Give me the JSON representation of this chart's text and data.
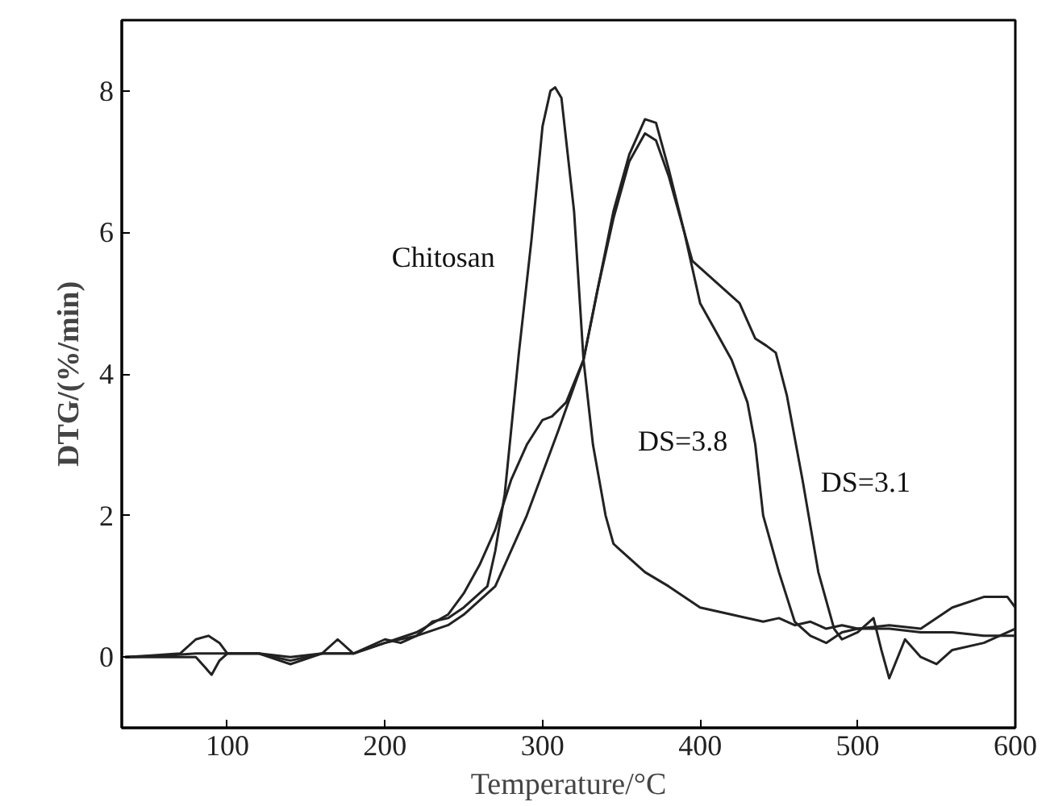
{
  "chart_data": {
    "type": "line",
    "xlabel": "Temperature/°C",
    "ylabel": "DTG/(%/min)",
    "xlim": [
      33,
      600
    ],
    "ylim": [
      -1,
      9
    ],
    "xticks": [
      100,
      200,
      300,
      400,
      500,
      600
    ],
    "yticks": [
      0,
      2,
      4,
      6,
      8
    ],
    "grid": false,
    "line_style": "solid",
    "series": [
      {
        "name": "Chitosan",
        "color": "#222222",
        "x": [
          35,
          50,
          70,
          80,
          88,
          95,
          100,
          120,
          140,
          160,
          180,
          200,
          210,
          220,
          230,
          240,
          250,
          260,
          265,
          270,
          276,
          285,
          293,
          300,
          305,
          308,
          312,
          320,
          326,
          332,
          340,
          345,
          355,
          365,
          380,
          400,
          420,
          440,
          450,
          460,
          470,
          480,
          490,
          500,
          520,
          540,
          560,
          580,
          595,
          600
        ],
        "values": [
          0,
          0.02,
          0.05,
          0.25,
          0.3,
          0.2,
          0.05,
          0.05,
          -0.05,
          0.05,
          0.05,
          0.25,
          0.2,
          0.3,
          0.5,
          0.55,
          0.7,
          0.9,
          1.0,
          1.5,
          2.3,
          4.3,
          5.9,
          7.5,
          8.0,
          8.05,
          7.9,
          6.3,
          4.2,
          3.0,
          2.0,
          1.6,
          1.4,
          1.2,
          1.0,
          0.7,
          0.6,
          0.5,
          0.55,
          0.45,
          0.5,
          0.4,
          0.45,
          0.4,
          0.45,
          0.4,
          0.7,
          0.85,
          0.85,
          0.7
        ]
      },
      {
        "name": "DS=3.8",
        "color": "#222222",
        "x": [
          35,
          60,
          80,
          100,
          120,
          140,
          160,
          180,
          200,
          220,
          240,
          250,
          260,
          270,
          280,
          290,
          300,
          306,
          315,
          326,
          335,
          345,
          355,
          365,
          372,
          380,
          390,
          400,
          410,
          420,
          430,
          435,
          440,
          445,
          450,
          460,
          470,
          480,
          490,
          500,
          520,
          540,
          560,
          580,
          600
        ],
        "values": [
          0,
          0.02,
          0.05,
          0.05,
          0.05,
          0.0,
          0.05,
          0.05,
          0.2,
          0.35,
          0.6,
          0.9,
          1.3,
          1.8,
          2.5,
          3.0,
          3.35,
          3.4,
          3.6,
          4.2,
          5.2,
          6.2,
          7.0,
          7.4,
          7.3,
          6.8,
          6.0,
          5.0,
          4.6,
          4.2,
          3.6,
          3.0,
          2.0,
          1.6,
          1.2,
          0.5,
          0.3,
          0.2,
          0.35,
          0.4,
          0.4,
          0.35,
          0.35,
          0.3,
          0.3
        ]
      },
      {
        "name": "DS=3.1",
        "color": "#222222",
        "x": [
          35,
          60,
          80,
          86,
          90,
          95,
          100,
          120,
          140,
          160,
          170,
          180,
          200,
          220,
          240,
          250,
          270,
          290,
          310,
          326,
          335,
          345,
          355,
          365,
          372,
          380,
          390,
          395,
          410,
          425,
          435,
          442,
          448,
          455,
          465,
          475,
          485,
          490,
          500,
          510,
          515,
          520,
          530,
          540,
          550,
          560,
          580,
          600
        ],
        "values": [
          0,
          0.0,
          0.0,
          -0.15,
          -0.25,
          -0.05,
          0.05,
          0.05,
          -0.1,
          0.05,
          0.25,
          0.05,
          0.2,
          0.3,
          0.45,
          0.6,
          1.0,
          2.0,
          3.2,
          4.2,
          5.2,
          6.3,
          7.1,
          7.6,
          7.55,
          6.9,
          6.0,
          5.6,
          5.3,
          5.0,
          4.5,
          4.4,
          4.3,
          3.7,
          2.5,
          1.2,
          0.4,
          0.25,
          0.35,
          0.55,
          0.1,
          -0.3,
          0.25,
          0.0,
          -0.1,
          0.1,
          0.2,
          0.4
        ]
      }
    ]
  }
}
